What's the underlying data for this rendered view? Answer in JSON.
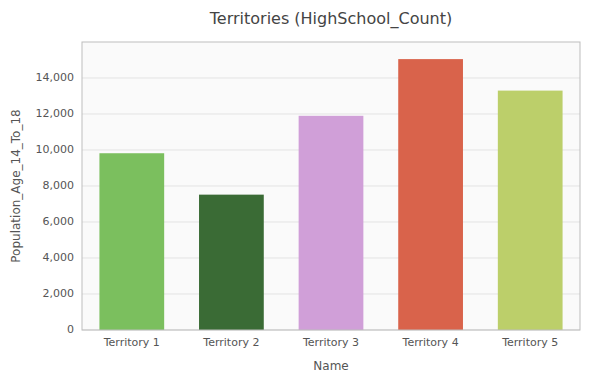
{
  "chart_data": {
    "type": "bar",
    "title": "Territories (HighSchool_Count)",
    "xlabel": "Name",
    "ylabel": "Population_Age_14_To_18",
    "categories": [
      "Territory 1",
      "Territory 2",
      "Territory 3",
      "Territory 4",
      "Territory 5"
    ],
    "values": [
      9820,
      7520,
      11900,
      15050,
      13300
    ],
    "colors": [
      "#7BBF5E",
      "#3A6B35",
      "#D09FD8",
      "#D9634B",
      "#BCCF6A"
    ],
    "ylim": [
      0,
      16000
    ],
    "yticks": [
      0,
      {
        "value": 2000,
        "label": "2,000"
      },
      {
        "value": 4000,
        "label": "4,000"
      },
      {
        "value": 6000,
        "label": "6,000"
      },
      {
        "value": 8000,
        "label": "8,000"
      },
      {
        "value": 10000,
        "label": "10,000"
      },
      {
        "value": 12000,
        "label": "12,000"
      },
      {
        "value": 14000,
        "label": "14,000"
      }
    ],
    "grid": true
  }
}
